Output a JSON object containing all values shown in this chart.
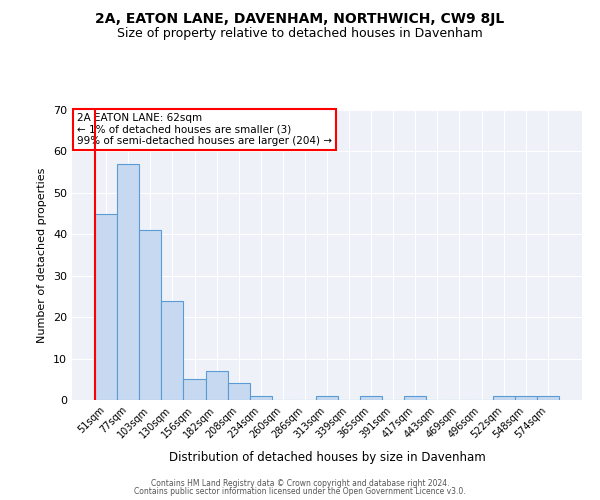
{
  "title": "2A, EATON LANE, DAVENHAM, NORTHWICH, CW9 8JL",
  "subtitle": "Size of property relative to detached houses in Davenham",
  "xlabel": "Distribution of detached houses by size in Davenham",
  "ylabel": "Number of detached properties",
  "categories": [
    "51sqm",
    "77sqm",
    "103sqm",
    "130sqm",
    "156sqm",
    "182sqm",
    "208sqm",
    "234sqm",
    "260sqm",
    "286sqm",
    "313sqm",
    "339sqm",
    "365sqm",
    "391sqm",
    "417sqm",
    "443sqm",
    "469sqm",
    "496sqm",
    "522sqm",
    "548sqm",
    "574sqm"
  ],
  "values": [
    45,
    57,
    41,
    24,
    5,
    7,
    4,
    1,
    0,
    0,
    1,
    0,
    1,
    0,
    1,
    0,
    0,
    0,
    1,
    1,
    1
  ],
  "bar_color": "#c6d9f0",
  "bar_edge_color": "#5b9bd5",
  "annotation_text": "2A EATON LANE: 62sqm\n← 1% of detached houses are smaller (3)\n99% of semi-detached houses are larger (204) →",
  "annotation_box_color": "white",
  "annotation_box_edge_color": "red",
  "marker_line_color": "red",
  "ylim": [
    0,
    70
  ],
  "yticks": [
    0,
    10,
    20,
    30,
    40,
    50,
    60,
    70
  ],
  "footer_line1": "Contains HM Land Registry data © Crown copyright and database right 2024.",
  "footer_line2": "Contains public sector information licensed under the Open Government Licence v3.0.",
  "background_color": "#eef2f8",
  "title_fontsize": 10,
  "subtitle_fontsize": 9
}
